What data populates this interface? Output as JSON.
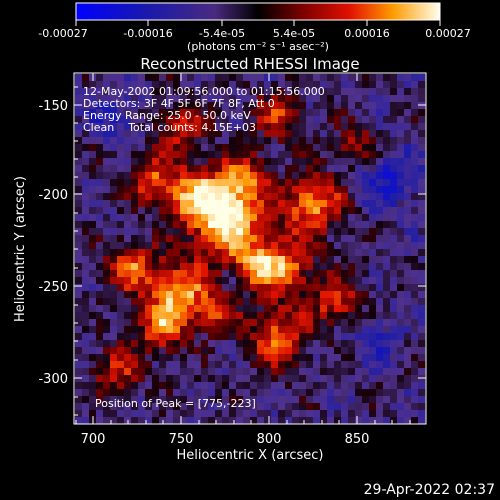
{
  "colorbar": {
    "tick_labels": [
      "-0.00027",
      "-0.00016",
      "-5.4e-05",
      "5.4e-05",
      "0.00016",
      "0.00027"
    ],
    "units_label": "(photons cm⁻² s⁻¹ asec⁻²)"
  },
  "plot": {
    "title": "Reconstructed RHESSI Image",
    "xlabel": "Heliocentric X (arcsec)",
    "ylabel": "Heliocentric Y (arcsec)",
    "xticks": [
      "700",
      "750",
      "800",
      "850"
    ],
    "yticks": [
      "-150",
      "-200",
      "-250",
      "-300"
    ],
    "annotations": [
      "12-May-2002 01:09:56.000 to 01:15:56.000",
      "Detectors: 3F 4F 5F 6F 7F 8F, Att 0",
      "Energy Range: 25.0 - 50.0 keV",
      "Clean    Total counts: 4.15E+03"
    ],
    "peak_label": "Position of Peak = [775,-223]"
  },
  "footer": {
    "timestamp": "29-Apr-2022 02:37"
  }
}
